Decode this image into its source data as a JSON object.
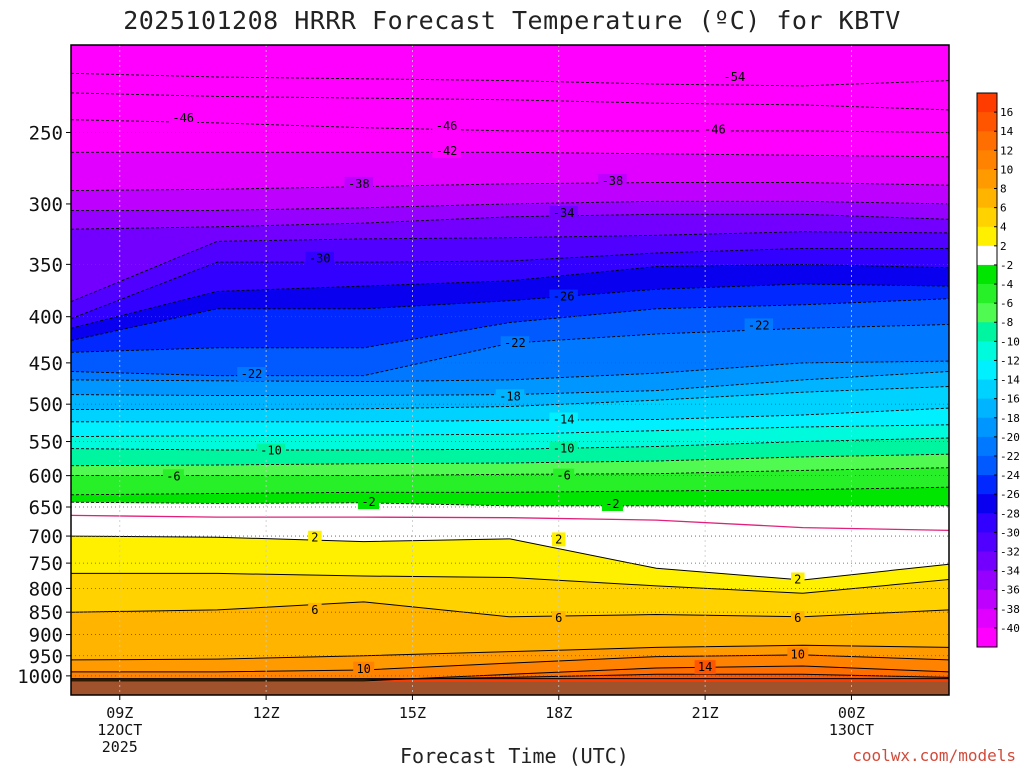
{
  "header": {
    "title": "2025101208 HRRR Forecast Temperature (ºC) for KBTV"
  },
  "footer": {
    "xlabel": "Forecast Time (UTC)",
    "credit": "coolwx.com/models"
  },
  "chart_data": {
    "type": "heatmap",
    "title": "2025101208 HRRR Forecast Temperature (ºC) for KBTV",
    "xlabel": "Forecast Time (UTC)",
    "ylabel": "",
    "x_range_hours_utc": [
      8,
      26
    ],
    "y_range_hpa": [
      1050,
      200
    ],
    "y_scale": "log-pressure",
    "x_ticks": [
      {
        "hour": 9,
        "lines": [
          "09Z",
          "12OCT",
          "2025"
        ]
      },
      {
        "hour": 12,
        "lines": [
          "12Z"
        ]
      },
      {
        "hour": 15,
        "lines": [
          "15Z"
        ]
      },
      {
        "hour": 18,
        "lines": [
          "18Z"
        ]
      },
      {
        "hour": 21,
        "lines": [
          "21Z"
        ]
      },
      {
        "hour": 24,
        "lines": [
          "00Z",
          "13OCT"
        ]
      }
    ],
    "y_ticks": [
      250,
      300,
      350,
      400,
      450,
      500,
      550,
      600,
      650,
      700,
      750,
      800,
      850,
      900,
      950,
      1000
    ],
    "grid": "dotted",
    "legend": "right colorbar",
    "colorbar": {
      "ticks": [
        16,
        14,
        12,
        10,
        8,
        6,
        4,
        2,
        -2,
        -4,
        -6,
        -8,
        -10,
        -12,
        -14,
        -16,
        -18,
        -20,
        -22,
        -24,
        -26,
        -28,
        -30,
        -32,
        -34,
        -36,
        -38,
        -40
      ],
      "bands": [
        {
          "t": 17,
          "color": "#ff3c00"
        },
        {
          "t": 15,
          "color": "#ff5500"
        },
        {
          "t": 13,
          "color": "#ff6e00"
        },
        {
          "t": 11,
          "color": "#ff8200"
        },
        {
          "t": 9,
          "color": "#ff9b00"
        },
        {
          "t": 7,
          "color": "#ffb400"
        },
        {
          "t": 5,
          "color": "#ffd200"
        },
        {
          "t": 3,
          "color": "#fff000"
        },
        {
          "t": 0,
          "color": "#ffffff"
        },
        {
          "t": -3,
          "color": "#00e600"
        },
        {
          "t": -5,
          "color": "#28f028"
        },
        {
          "t": -7,
          "color": "#50fa50"
        },
        {
          "t": -9,
          "color": "#00f5a0"
        },
        {
          "t": -11,
          "color": "#00fadc"
        },
        {
          "t": -13,
          "color": "#00f0ff"
        },
        {
          "t": -15,
          "color": "#00d2ff"
        },
        {
          "t": -17,
          "color": "#00b4ff"
        },
        {
          "t": -19,
          "color": "#0096ff"
        },
        {
          "t": -21,
          "color": "#0078ff"
        },
        {
          "t": -23,
          "color": "#005aff"
        },
        {
          "t": -25,
          "color": "#0028ff"
        },
        {
          "t": -27,
          "color": "#0a00f0"
        },
        {
          "t": -29,
          "color": "#3200ff"
        },
        {
          "t": -31,
          "color": "#5000ff"
        },
        {
          "t": -33,
          "color": "#7300ff"
        },
        {
          "t": -35,
          "color": "#9600ff"
        },
        {
          "t": -37,
          "color": "#be00ff"
        },
        {
          "t": -39,
          "color": "#e100ff"
        },
        {
          "t": -41,
          "color": "#ff00ff"
        }
      ]
    },
    "ground_color": "#a0522d",
    "ground_pressure_hpa": 1015,
    "series": [
      {
        "t": 16,
        "p": [
          1007,
          1007,
          1007,
          1007,
          1007,
          1007,
          1007
        ]
      },
      {
        "t": 14,
        "p": [
          1010,
          1010,
          1010,
          1004,
          996,
          996,
          1004
        ]
      },
      {
        "t": 12,
        "p": [
          1013,
          1013,
          1013,
          996,
          980,
          975,
          990
        ]
      },
      {
        "t": 10,
        "p": [
          990,
          990,
          985,
          968,
          952,
          948,
          960
        ]
      },
      {
        "t": 8,
        "p": [
          960,
          958,
          950,
          940,
          930,
          925,
          930
        ]
      },
      {
        "t": 6,
        "p": [
          850,
          845,
          828,
          860,
          855,
          860,
          845
        ]
      },
      {
        "t": 4,
        "p": [
          770,
          770,
          775,
          778,
          795,
          810,
          782
        ]
      },
      {
        "t": 2,
        "p": [
          700,
          702,
          710,
          705,
          760,
          783,
          752
        ]
      },
      {
        "t": 0,
        "p": [
          664,
          667,
          667,
          668,
          672,
          685,
          690
        ]
      },
      {
        "t": -2,
        "p": [
          642,
          644,
          643,
          648,
          648,
          648,
          648
        ]
      },
      {
        "t": -4,
        "p": [
          630,
          628,
          626,
          626,
          624,
          622,
          618
        ]
      },
      {
        "t": -6,
        "p": [
          600,
          600,
          600,
          598,
          597,
          592,
          588
        ]
      },
      {
        "t": -8,
        "p": [
          585,
          584,
          582,
          581,
          578,
          572,
          568
        ]
      },
      {
        "t": -10,
        "p": [
          560,
          562,
          562,
          561,
          557,
          550,
          545
        ]
      },
      {
        "t": -12,
        "p": [
          543,
          542,
          541,
          540,
          535,
          530,
          527
        ]
      },
      {
        "t": -14,
        "p": [
          523,
          523,
          523,
          521,
          520,
          514,
          505
        ]
      },
      {
        "t": -16,
        "p": [
          507,
          507,
          506,
          503,
          495,
          485,
          478
        ]
      },
      {
        "t": -18,
        "p": [
          488,
          489,
          489,
          488,
          483,
          470,
          460
        ]
      },
      {
        "t": -20,
        "p": [
          470,
          471,
          472,
          470,
          462,
          450,
          448
        ]
      },
      {
        "t": -22,
        "p": [
          460,
          465,
          465,
          428,
          418,
          412,
          408
        ]
      },
      {
        "t": -24,
        "p": [
          438,
          433,
          433,
          406,
          392,
          388,
          382
        ]
      },
      {
        "t": -26,
        "p": [
          425,
          392,
          392,
          384,
          373,
          368,
          370
        ]
      },
      {
        "t": -28,
        "p": [
          412,
          375,
          370,
          365,
          352,
          350,
          353
        ]
      },
      {
        "t": -30,
        "p": [
          402,
          348,
          348,
          347,
          340,
          336,
          336
        ]
      },
      {
        "t": -32,
        "p": [
          385,
          330,
          328,
          327,
          325,
          322,
          323
        ]
      },
      {
        "t": -34,
        "p": [
          320,
          318,
          315,
          310,
          308,
          308,
          312
        ]
      },
      {
        "t": -36,
        "p": [
          305,
          305,
          303,
          300,
          298,
          298,
          300
        ]
      },
      {
        "t": -38,
        "p": [
          290,
          289,
          287,
          285,
          284,
          284,
          286
        ]
      },
      {
        "t": -42,
        "p": [
          263,
          263,
          263,
          263,
          264,
          265,
          266
        ]
      },
      {
        "t": -46,
        "p": [
          242,
          244,
          247,
          249,
          249,
          249,
          250
        ]
      },
      {
        "t": -50,
        "p": [
          226,
          228,
          229,
          230,
          232,
          233,
          236
        ]
      },
      {
        "t": -54,
        "p": [
          215,
          217,
          218,
          219,
          221,
          222,
          219
        ]
      }
    ],
    "series_x_hours": [
      8,
      11,
      14,
      17,
      20,
      23,
      26
    ],
    "contour_labels": [
      {
        "text": "-54",
        "hour": 21.6,
        "p": 217
      },
      {
        "text": "-46",
        "hour": 10.3,
        "p": 241
      },
      {
        "text": "-46",
        "hour": 15.7,
        "p": 246
      },
      {
        "text": "-46",
        "hour": 21.2,
        "p": 248
      },
      {
        "text": "-42",
        "hour": 15.7,
        "p": 262
      },
      {
        "text": "-38",
        "hour": 13.9,
        "p": 285
      },
      {
        "text": "-38",
        "hour": 19.1,
        "p": 283
      },
      {
        "text": "-34",
        "hour": 18.1,
        "p": 307
      },
      {
        "text": "-30",
        "hour": 13.1,
        "p": 345
      },
      {
        "text": "-26",
        "hour": 18.1,
        "p": 380
      },
      {
        "text": "-22",
        "hour": 11.7,
        "p": 463
      },
      {
        "text": "-22",
        "hour": 17.1,
        "p": 428
      },
      {
        "text": "-22",
        "hour": 22.1,
        "p": 409
      },
      {
        "text": "-18",
        "hour": 17.0,
        "p": 490
      },
      {
        "text": "-14",
        "hour": 18.1,
        "p": 520
      },
      {
        "text": "-10",
        "hour": 12.1,
        "p": 563
      },
      {
        "text": "-10",
        "hour": 18.1,
        "p": 560
      },
      {
        "text": "-6",
        "hour": 10.1,
        "p": 601
      },
      {
        "text": "-6",
        "hour": 18.1,
        "p": 600
      },
      {
        "text": "-2",
        "hour": 14.1,
        "p": 642
      },
      {
        "text": "-2",
        "hour": 19.1,
        "p": 645
      },
      {
        "text": "2",
        "hour": 13.0,
        "p": 703
      },
      {
        "text": "2",
        "hour": 18.0,
        "p": 706
      },
      {
        "text": "2",
        "hour": 22.9,
        "p": 782
      },
      {
        "text": "6",
        "hour": 13.0,
        "p": 845
      },
      {
        "text": "6",
        "hour": 18.0,
        "p": 863
      },
      {
        "text": "6",
        "hour": 22.9,
        "p": 863
      },
      {
        "text": "10",
        "hour": 14.0,
        "p": 982
      },
      {
        "text": "10",
        "hour": 22.9,
        "p": 947
      },
      {
        "text": "14",
        "hour": 21.0,
        "p": 978
      }
    ]
  }
}
